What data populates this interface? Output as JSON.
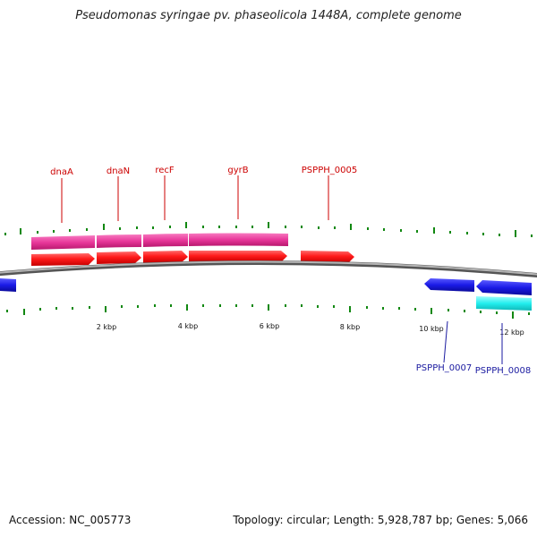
{
  "title": "Pseudomonas syringae pv. phaseolicola 1448A, complete genome",
  "footer": {
    "accession": "Accession: NC_005773",
    "summary": "Topology: circular; Length: 5,928,787 bp; Genes: 5,066"
  },
  "colors": {
    "forward_cds": "#ff1a1a",
    "forward_gene": "#ee3399",
    "reverse_cds": "#1a1ae6",
    "reverse_gene": "#22eeee",
    "tick": "#118811",
    "backbone": "#8a8a8a"
  },
  "scale_labels": [
    "2 kbp",
    "4 kbp",
    "6 kbp",
    "8 kbp",
    "10 kbp",
    "12 kbp"
  ],
  "genes_top": [
    {
      "name": "dnaA"
    },
    {
      "name": "dnaN"
    },
    {
      "name": "recF"
    },
    {
      "name": "gyrB"
    },
    {
      "name": "PSPPH_0005"
    }
  ],
  "genes_bottom": [
    {
      "name": "PSPPH_0007"
    },
    {
      "name": "PSPPH_0008"
    }
  ]
}
